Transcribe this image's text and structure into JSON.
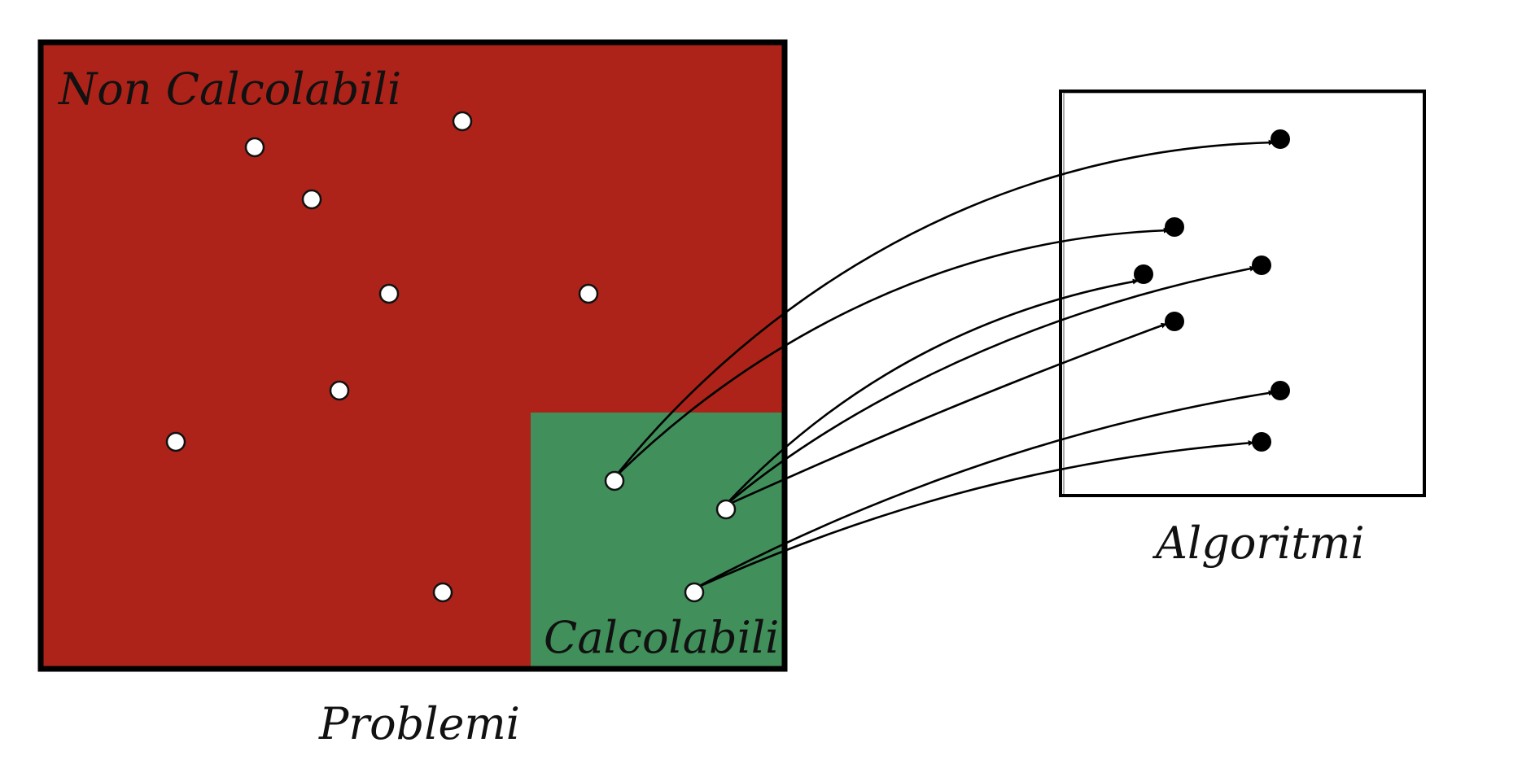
{
  "problems": {
    "title": "Problemi",
    "non_computable_label": "Non Calcolabili",
    "computable_label": "Calcolabili",
    "non_computable_color": "#ad2319",
    "computable_color": "#418f5a"
  },
  "algorithms": {
    "title": "Algoritmi"
  },
  "colors": {
    "outline": "#000000",
    "problem_dot_fill": "#ffffff",
    "algorithm_dot_fill": "#000000"
  }
}
